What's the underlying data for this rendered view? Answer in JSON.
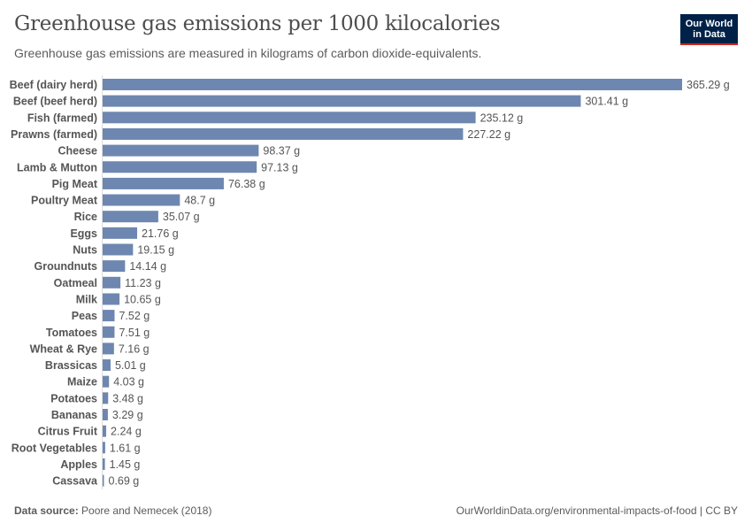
{
  "header": {
    "title": "Greenhouse gas emissions per 1000 kilocalories",
    "subtitle": "Greenhouse gas emissions are measured in kilograms of carbon dioxide-equivalents.",
    "logo_text": "Our World in Data"
  },
  "footer": {
    "source_label": "Data source:",
    "source": "Poore and Nemecek (2018)",
    "url_license": "OurWorldinData.org/environmental-impacts-of-food | CC BY"
  },
  "colors": {
    "bar": "#6d87b0",
    "logo_bg": "#002147",
    "logo_accent": "#ce261e"
  },
  "chart_data": {
    "type": "bar",
    "orientation": "horizontal",
    "unit": "g",
    "categories": [
      "Beef (dairy herd)",
      "Beef (beef herd)",
      "Fish (farmed)",
      "Prawns (farmed)",
      "Cheese",
      "Lamb & Mutton",
      "Pig Meat",
      "Poultry Meat",
      "Rice",
      "Eggs",
      "Nuts",
      "Groundnuts",
      "Oatmeal",
      "Milk",
      "Peas",
      "Tomatoes",
      "Wheat & Rye",
      "Brassicas",
      "Maize",
      "Potatoes",
      "Bananas",
      "Citrus Fruit",
      "Root Vegetables",
      "Apples",
      "Cassava"
    ],
    "values": [
      365.29,
      301.41,
      235.12,
      227.22,
      98.37,
      97.13,
      76.38,
      48.7,
      35.07,
      21.76,
      19.15,
      14.14,
      11.23,
      10.65,
      7.52,
      7.51,
      7.16,
      5.01,
      4.03,
      3.48,
      3.29,
      2.24,
      1.61,
      1.45,
      0.69
    ],
    "data_labels": [
      "365.29 g",
      "301.41 g",
      "235.12 g",
      "227.22 g",
      "98.37 g",
      "97.13 g",
      "76.38 g",
      "48.7 g",
      "35.07 g",
      "21.76 g",
      "19.15 g",
      "14.14 g",
      "11.23 g",
      "10.65 g",
      "7.52 g",
      "7.51 g",
      "7.16 g",
      "5.01 g",
      "4.03 g",
      "3.48 g",
      "3.29 g",
      "2.24 g",
      "1.61 g",
      "1.45 g",
      "0.69 g"
    ],
    "xlim": [
      0,
      365.29
    ],
    "grid": false
  }
}
